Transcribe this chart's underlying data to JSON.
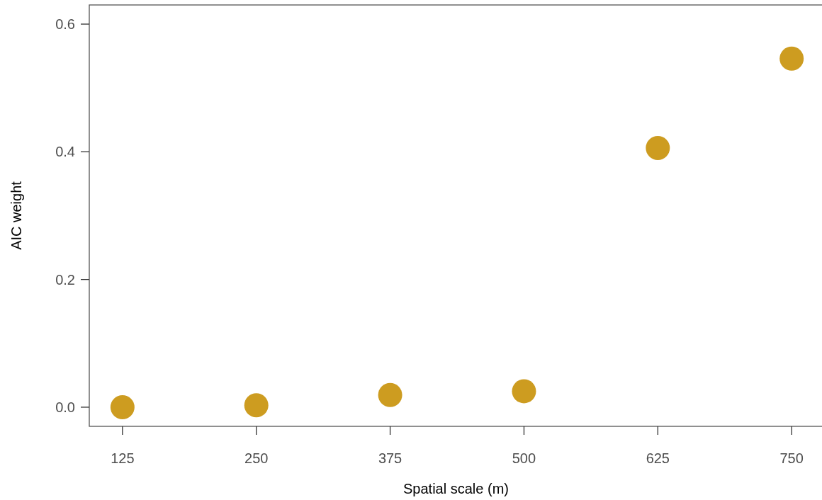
{
  "chart_data": {
    "type": "scatter",
    "xlabel": "Spatial scale (m)",
    "ylabel": "AIC weight",
    "x": [
      125,
      250,
      375,
      500,
      625,
      750
    ],
    "values": [
      0,
      0.003,
      0.019,
      0.025,
      0.406,
      0.546
    ],
    "color": "#cd9c20",
    "marker": "circle",
    "xlim": [
      94,
      779
    ],
    "ylim": [
      -0.03,
      0.63
    ],
    "xticks": [
      125,
      250,
      375,
      500,
      625,
      750
    ],
    "yticks": [
      {
        "value": 0,
        "label": "0.0"
      },
      {
        "value": 0.2,
        "label": "0.2"
      },
      {
        "value": 0.4,
        "label": "0.4"
      },
      {
        "value": 0.6,
        "label": "0.6"
      }
    ]
  }
}
